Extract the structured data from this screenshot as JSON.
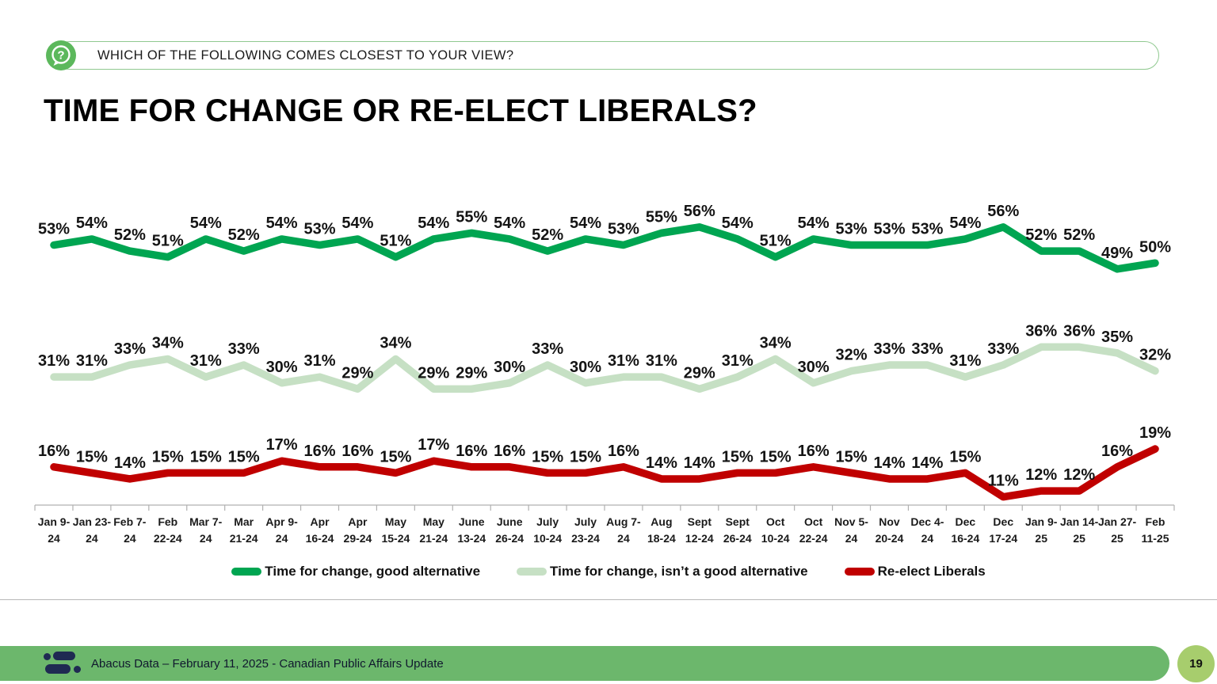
{
  "header": {
    "question": "WHICH OF THE FOLLOWING COMES CLOSEST TO YOUR VIEW?"
  },
  "title": "TIME FOR CHANGE OR RE-ELECT LIBERALS?",
  "chart_data": {
    "type": "line",
    "title": "Time for change or re-elect Liberals?",
    "xlabel": "",
    "ylabel": "",
    "ylim": [
      0,
      60
    ],
    "grid": false,
    "legend_position": "bottom",
    "value_suffix": "%",
    "categories": [
      [
        "Jan 9-",
        "24"
      ],
      [
        "Jan 23-",
        "24"
      ],
      [
        "Feb 7-",
        "24"
      ],
      [
        "Feb",
        "22-24"
      ],
      [
        "Mar 7-",
        "24"
      ],
      [
        "Mar",
        "21-24"
      ],
      [
        "Apr 9-",
        "24"
      ],
      [
        "Apr",
        "16-24"
      ],
      [
        "Apr",
        "29-24"
      ],
      [
        "May",
        "15-24"
      ],
      [
        "May",
        "21-24"
      ],
      [
        "June",
        "13-24"
      ],
      [
        "June",
        "26-24"
      ],
      [
        "July",
        "10-24"
      ],
      [
        "July",
        "23-24"
      ],
      [
        "Aug 7-",
        "24"
      ],
      [
        "Aug",
        "18-24"
      ],
      [
        "Sept",
        "12-24"
      ],
      [
        "Sept",
        "26-24"
      ],
      [
        "Oct",
        "10-24"
      ],
      [
        "Oct",
        "22-24"
      ],
      [
        "Nov 5-",
        "24"
      ],
      [
        "Nov",
        "20-24"
      ],
      [
        "Dec 4-",
        "24"
      ],
      [
        "Dec",
        "16-24"
      ],
      [
        "Dec",
        "17-24"
      ],
      [
        "Jan 9-",
        "25"
      ],
      [
        "Jan 14-",
        "25"
      ],
      [
        "Jan 27-",
        "25"
      ],
      [
        "Feb",
        "11-25"
      ]
    ],
    "series": [
      {
        "name": "Time for change, good alternative",
        "color": "#00A551",
        "values": [
          53,
          54,
          52,
          51,
          54,
          52,
          54,
          53,
          54,
          51,
          54,
          55,
          54,
          52,
          54,
          53,
          55,
          56,
          54,
          51,
          54,
          53,
          53,
          53,
          54,
          56,
          52,
          52,
          49,
          50
        ]
      },
      {
        "name": "Time for change, isn’t a good alternative",
        "color": "#C6E0C4",
        "values": [
          31,
          31,
          33,
          34,
          31,
          33,
          30,
          31,
          29,
          34,
          29,
          29,
          30,
          33,
          30,
          31,
          31,
          29,
          31,
          34,
          30,
          32,
          33,
          33,
          31,
          33,
          36,
          36,
          35,
          32
        ]
      },
      {
        "name": "Re-elect Liberals",
        "color": "#C00000",
        "values": [
          16,
          15,
          14,
          15,
          15,
          15,
          17,
          16,
          16,
          15,
          17,
          16,
          16,
          15,
          15,
          16,
          14,
          14,
          15,
          15,
          16,
          15,
          14,
          14,
          15,
          11,
          12,
          12,
          16,
          19
        ]
      }
    ]
  },
  "footer": {
    "text": "Abacus Data – February 11, 2025 - Canadian Public Affairs Update",
    "page_number": "19"
  },
  "colors": {
    "footer_bar": "#6CB76C",
    "page_badge": "#A7CD6D",
    "logo_navy": "#1F2A52",
    "footer_text": "#10182E",
    "axis": "#B0B0B0",
    "question_icon": "#5CB85C"
  }
}
